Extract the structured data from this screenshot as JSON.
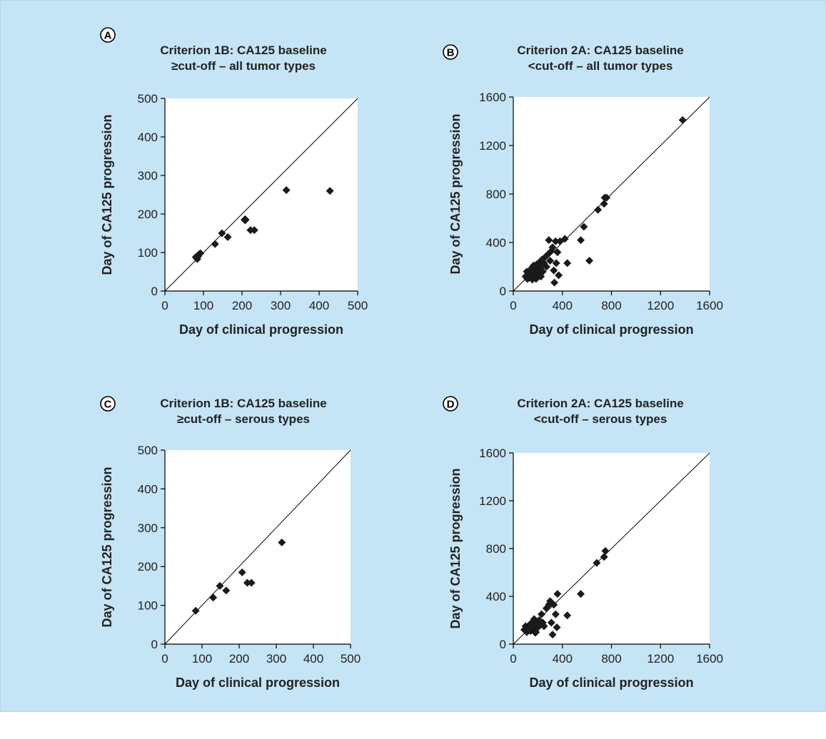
{
  "figure": {
    "background": "#c5e4f5",
    "marker_color": "#1a1a1a"
  },
  "chart_data": [
    {
      "id": "A",
      "panel_letter": "A",
      "type": "scatter",
      "title_lines": [
        "Criterion 1B: CA125 baseline",
        "≥cut-off – all tumor types"
      ],
      "xlabel": "Day of clinical progression",
      "ylabel": "Day of CA125 progression",
      "xlim": [
        0,
        500
      ],
      "ylim": [
        0,
        500
      ],
      "xticks": [
        0,
        100,
        200,
        300,
        400,
        500
      ],
      "yticks": [
        0,
        100,
        200,
        300,
        400,
        500
      ],
      "identity_line": true,
      "marker": "diamond",
      "highlight_color": "#3a3a7a",
      "points": [
        {
          "x": 80,
          "y": 88
        },
        {
          "x": 84,
          "y": 83
        },
        {
          "x": 88,
          "y": 95
        },
        {
          "x": 92,
          "y": 98
        },
        {
          "x": 86,
          "y": 90
        },
        {
          "x": 130,
          "y": 122
        },
        {
          "x": 148,
          "y": 150
        },
        {
          "x": 163,
          "y": 140
        },
        {
          "x": 208,
          "y": 185,
          "highlight": true
        },
        {
          "x": 222,
          "y": 158
        },
        {
          "x": 232,
          "y": 158
        },
        {
          "x": 315,
          "y": 262
        },
        {
          "x": 428,
          "y": 260
        }
      ]
    },
    {
      "id": "B",
      "panel_letter": "B",
      "type": "scatter",
      "title_lines": [
        "Criterion 2A: CA125 baseline",
        "<cut-off – all tumor types"
      ],
      "xlabel": "Day of clinical progression",
      "ylabel": "Day of CA125 progression",
      "xlim": [
        0,
        1600
      ],
      "ylim": [
        0,
        1600
      ],
      "xticks": [
        0,
        400,
        800,
        1200,
        1600
      ],
      "yticks": [
        0,
        400,
        800,
        1200,
        1600
      ],
      "identity_line": true,
      "marker": "diamond",
      "points": [
        {
          "x": 100,
          "y": 120
        },
        {
          "x": 110,
          "y": 160
        },
        {
          "x": 115,
          "y": 100
        },
        {
          "x": 125,
          "y": 140
        },
        {
          "x": 130,
          "y": 110
        },
        {
          "x": 140,
          "y": 170
        },
        {
          "x": 145,
          "y": 130
        },
        {
          "x": 150,
          "y": 190
        },
        {
          "x": 155,
          "y": 95
        },
        {
          "x": 160,
          "y": 150
        },
        {
          "x": 165,
          "y": 210
        },
        {
          "x": 170,
          "y": 120
        },
        {
          "x": 175,
          "y": 180
        },
        {
          "x": 180,
          "y": 140
        },
        {
          "x": 185,
          "y": 100
        },
        {
          "x": 190,
          "y": 220
        },
        {
          "x": 195,
          "y": 165
        },
        {
          "x": 200,
          "y": 130
        },
        {
          "x": 205,
          "y": 190
        },
        {
          "x": 210,
          "y": 150
        },
        {
          "x": 215,
          "y": 240
        },
        {
          "x": 220,
          "y": 175
        },
        {
          "x": 225,
          "y": 120
        },
        {
          "x": 230,
          "y": 200
        },
        {
          "x": 235,
          "y": 260
        },
        {
          "x": 240,
          "y": 160
        },
        {
          "x": 250,
          "y": 230
        },
        {
          "x": 260,
          "y": 280
        },
        {
          "x": 270,
          "y": 200
        },
        {
          "x": 280,
          "y": 300
        },
        {
          "x": 290,
          "y": 420
        },
        {
          "x": 300,
          "y": 250
        },
        {
          "x": 310,
          "y": 330
        },
        {
          "x": 320,
          "y": 360
        },
        {
          "x": 330,
          "y": 170
        },
        {
          "x": 335,
          "y": 70
        },
        {
          "x": 345,
          "y": 410
        },
        {
          "x": 350,
          "y": 230
        },
        {
          "x": 360,
          "y": 320
        },
        {
          "x": 370,
          "y": 130
        },
        {
          "x": 380,
          "y": 410
        },
        {
          "x": 420,
          "y": 430
        },
        {
          "x": 440,
          "y": 230
        },
        {
          "x": 550,
          "y": 420
        },
        {
          "x": 575,
          "y": 530
        },
        {
          "x": 620,
          "y": 250
        },
        {
          "x": 690,
          "y": 670
        },
        {
          "x": 740,
          "y": 720
        },
        {
          "x": 745,
          "y": 770
        },
        {
          "x": 760,
          "y": 770
        },
        {
          "x": 1380,
          "y": 1410
        }
      ]
    },
    {
      "id": "C",
      "panel_letter": "C",
      "type": "scatter",
      "title_lines": [
        "Criterion 1B: CA125 baseline",
        "≥cut-off – serous types"
      ],
      "xlabel": "Day of clinical progression",
      "ylabel": "Day of CA125 progression",
      "xlim": [
        0,
        500
      ],
      "ylim": [
        0,
        500
      ],
      "xticks": [
        0,
        100,
        200,
        300,
        400,
        500
      ],
      "yticks": [
        0,
        100,
        200,
        300,
        400,
        500
      ],
      "identity_line": true,
      "marker": "diamond",
      "points": [
        {
          "x": 83,
          "y": 86
        },
        {
          "x": 130,
          "y": 120
        },
        {
          "x": 148,
          "y": 150
        },
        {
          "x": 165,
          "y": 138
        },
        {
          "x": 208,
          "y": 185
        },
        {
          "x": 222,
          "y": 158
        },
        {
          "x": 233,
          "y": 158
        },
        {
          "x": 315,
          "y": 262
        }
      ]
    },
    {
      "id": "D",
      "panel_letter": "D",
      "type": "scatter",
      "title_lines": [
        "Criterion 2A: CA125 baseline",
        "<cut-off – serous types"
      ],
      "xlabel": "Day of clinical progression",
      "ylabel": "Day of CA125 progression",
      "xlim": [
        0,
        1600
      ],
      "ylim": [
        0,
        1600
      ],
      "xticks": [
        0,
        400,
        800,
        1200,
        1600
      ],
      "yticks": [
        0,
        400,
        800,
        1200,
        1600
      ],
      "identity_line": true,
      "marker": "diamond",
      "highlight_color": "#7a2020",
      "points": [
        {
          "x": 90,
          "y": 120
        },
        {
          "x": 100,
          "y": 150
        },
        {
          "x": 110,
          "y": 100
        },
        {
          "x": 120,
          "y": 130
        },
        {
          "x": 130,
          "y": 160
        },
        {
          "x": 140,
          "y": 110
        },
        {
          "x": 150,
          "y": 180
        },
        {
          "x": 160,
          "y": 140
        },
        {
          "x": 170,
          "y": 210
        },
        {
          "x": 175,
          "y": 120
        },
        {
          "x": 180,
          "y": 100,
          "highlight": true
        },
        {
          "x": 190,
          "y": 170
        },
        {
          "x": 200,
          "y": 140
        },
        {
          "x": 210,
          "y": 200
        },
        {
          "x": 220,
          "y": 160
        },
        {
          "x": 230,
          "y": 250
        },
        {
          "x": 240,
          "y": 180
        },
        {
          "x": 250,
          "y": 150
        },
        {
          "x": 270,
          "y": 300
        },
        {
          "x": 290,
          "y": 330
        },
        {
          "x": 300,
          "y": 360
        },
        {
          "x": 310,
          "y": 180
        },
        {
          "x": 320,
          "y": 80
        },
        {
          "x": 330,
          "y": 330
        },
        {
          "x": 345,
          "y": 250
        },
        {
          "x": 355,
          "y": 140
        },
        {
          "x": 360,
          "y": 420
        },
        {
          "x": 440,
          "y": 240
        },
        {
          "x": 550,
          "y": 420
        },
        {
          "x": 680,
          "y": 680
        },
        {
          "x": 740,
          "y": 730
        },
        {
          "x": 750,
          "y": 780
        }
      ]
    }
  ]
}
